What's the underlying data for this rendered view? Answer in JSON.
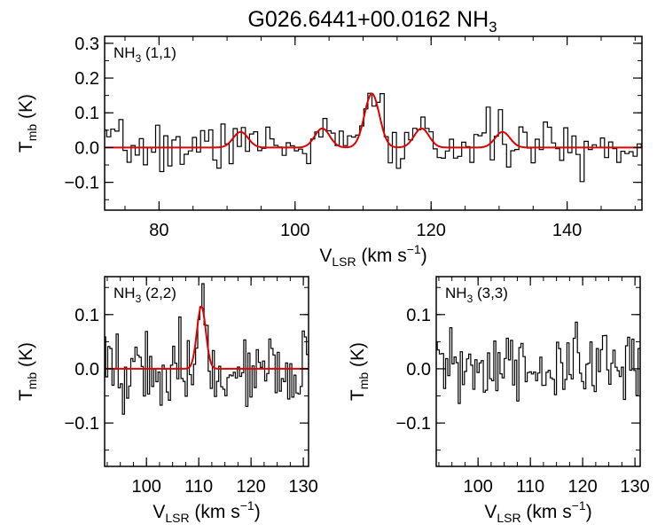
{
  "title": {
    "source": "G026.6441+00.0162",
    "molecule": "NH",
    "molecule_sub": "3"
  },
  "colors": {
    "spectrum": "#000000",
    "fit": "#e00000",
    "axes": "#000000"
  },
  "chart_data": [
    {
      "id": "nh3-11",
      "type": "line",
      "label": {
        "main": "NH",
        "sub": "3",
        "rest": " (1,1)"
      },
      "xlabel": {
        "main": "V",
        "sub": "LSR",
        "rest": " (km s",
        "sup": "−1",
        "end": ")"
      },
      "ylabel": {
        "main": "T",
        "sub": "mb",
        "rest": " (K)"
      },
      "xlim": [
        72,
        151
      ],
      "ylim": [
        -0.18,
        0.32
      ],
      "xticks": [
        80,
        100,
        120,
        140
      ],
      "yticks": [
        -0.1,
        0.0,
        0.1,
        0.2,
        0.3
      ],
      "ytick_labels": [
        "−0.1",
        "0.0",
        "0.1",
        "0.2",
        "0.3"
      ],
      "fit": {
        "baseline": 0.0,
        "components": [
          {
            "center": 92.0,
            "amp": 0.045,
            "sigma": 1.1
          },
          {
            "center": 104.0,
            "amp": 0.055,
            "sigma": 1.1
          },
          {
            "center": 111.3,
            "amp": 0.155,
            "sigma": 1.1
          },
          {
            "center": 118.6,
            "amp": 0.055,
            "sigma": 1.1
          },
          {
            "center": 130.5,
            "amp": 0.045,
            "sigma": 1.1
          }
        ]
      },
      "spectrum": {
        "x_start": 72.0,
        "x_step": 0.6,
        "noise": 0.035,
        "seed": 7
      }
    },
    {
      "id": "nh3-22",
      "type": "line",
      "label": {
        "main": "NH",
        "sub": "3",
        "rest": " (2,2)"
      },
      "xlabel": {
        "main": "V",
        "sub": "LSR",
        "rest": " (km s",
        "sup": "−1",
        "end": ")"
      },
      "ylabel": {
        "main": "T",
        "sub": "mb",
        "rest": " (K)"
      },
      "xlim": [
        92,
        131
      ],
      "ylim": [
        -0.18,
        0.17
      ],
      "xticks": [
        100,
        110,
        120,
        130
      ],
      "yticks": [
        -0.1,
        0.0,
        0.1
      ],
      "ytick_labels": [
        "−0.1",
        "0.0",
        "0.1"
      ],
      "fit": {
        "baseline": 0.0,
        "components": [
          {
            "center": 110.5,
            "amp": 0.115,
            "sigma": 0.85
          }
        ]
      },
      "spectrum": {
        "x_start": 92.0,
        "x_step": 0.4,
        "noise": 0.035,
        "seed": 19
      }
    },
    {
      "id": "nh3-33",
      "type": "line",
      "label": {
        "main": "NH",
        "sub": "3",
        "rest": " (3,3)"
      },
      "xlabel": {
        "main": "V",
        "sub": "LSR",
        "rest": " (km s",
        "sup": "−1",
        "end": ")"
      },
      "ylabel": {
        "main": "T",
        "sub": "mb",
        "rest": " (K)"
      },
      "xlim": [
        92,
        131
      ],
      "ylim": [
        -0.18,
        0.17
      ],
      "xticks": [
        100,
        110,
        120,
        130
      ],
      "yticks": [
        -0.1,
        0.0,
        0.1
      ],
      "ytick_labels": [
        "−0.1",
        "0.0",
        "0.1"
      ],
      "fit": null,
      "spectrum": {
        "x_start": 92.0,
        "x_step": 0.4,
        "noise": 0.035,
        "seed": 31
      }
    }
  ]
}
